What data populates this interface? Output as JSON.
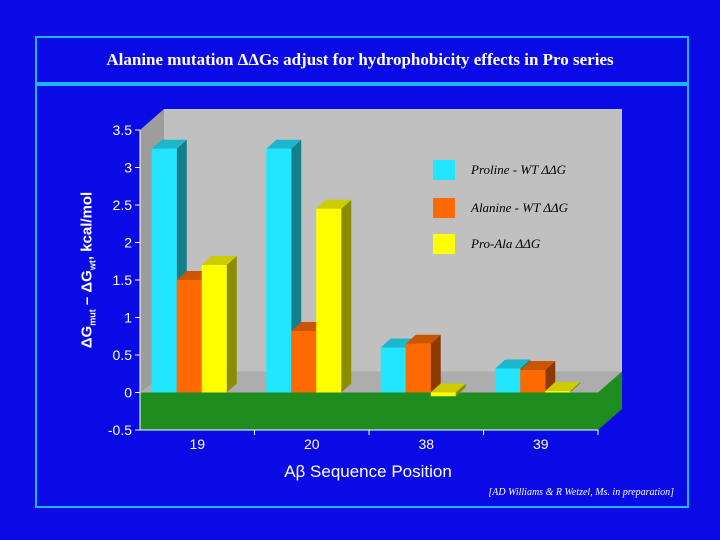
{
  "slide": {
    "title": "Alanine mutation ΔΔGs adjust for hydrophobicity effects in Pro series",
    "citation": "[AD Williams & R Wetzel, Ms. in preparation]",
    "background": "#0a0ae6",
    "rule_color": "#1fb4ff"
  },
  "axis_titles": {
    "y_delta1": "ΔG",
    "y_sub1": "mut",
    "y_mid": " – ΔG",
    "y_sub2": "wt",
    "y_tail": ", kcal/mol",
    "x": "Aβ Sequence Position"
  },
  "chart_data": {
    "type": "bar",
    "categories": [
      "19",
      "20",
      "38",
      "39"
    ],
    "series": [
      {
        "name": "Proline - WT ΔΔG",
        "color": "#22e5ff",
        "values": [
          3.25,
          3.25,
          0.6,
          0.32
        ]
      },
      {
        "name": "Alanine - WT ΔΔG",
        "color": "#ff6a00",
        "values": [
          1.5,
          0.82,
          0.65,
          0.3
        ]
      },
      {
        "name": "Pro-Ala ΔΔG",
        "color": "#ffff00",
        "values": [
          1.7,
          2.45,
          -0.05,
          0.02
        ]
      }
    ],
    "ylim": [
      -0.5,
      3.5
    ],
    "yticks": [
      "3.5",
      "3",
      "2.5",
      "2",
      "1.5",
      "1",
      "0.5",
      "0",
      "-0.5"
    ],
    "grid": false,
    "legend_position": "right",
    "wall_color": "#c0c0c0",
    "floor_color": "#1e8c1e"
  }
}
